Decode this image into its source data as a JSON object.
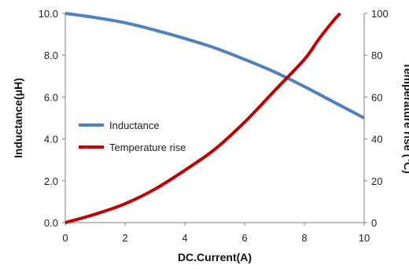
{
  "chart_data": {
    "type": "line",
    "title": "",
    "xlabel": "DC.Current(A)",
    "ylabel_left": "Inductance(μH)",
    "ylabel_right": "Temperature rise (℃)",
    "xlim": [
      0,
      10
    ],
    "ylim_left": [
      0,
      10
    ],
    "ylim_right": [
      0,
      100
    ],
    "x_ticks": [
      "0",
      "2",
      "4",
      "6",
      "8",
      "10"
    ],
    "y_left_ticks": [
      "0.0",
      "2.0",
      "4.0",
      "6.0",
      "8.0",
      "10.0"
    ],
    "y_right_ticks": [
      "0",
      "20",
      "40",
      "60",
      "80",
      "100"
    ],
    "grid": false,
    "legend_position": "center-left",
    "series": [
      {
        "name": "Inductance",
        "axis": "left",
        "color": "#4f81bd",
        "x": [
          0,
          1,
          2,
          3,
          4,
          5,
          6,
          7,
          8,
          9,
          10
        ],
        "y": [
          10.0,
          9.8,
          9.55,
          9.2,
          8.8,
          8.35,
          7.8,
          7.2,
          6.5,
          5.75,
          5.0
        ]
      },
      {
        "name": "Temperature rise",
        "axis": "right",
        "color": "#c00000",
        "x": [
          0,
          1,
          2,
          3,
          4,
          5,
          6,
          7,
          8,
          8.5,
          9,
          9.2
        ],
        "y": [
          0,
          4,
          9,
          16,
          25,
          35,
          48,
          63,
          78,
          88,
          97,
          100
        ]
      }
    ]
  }
}
